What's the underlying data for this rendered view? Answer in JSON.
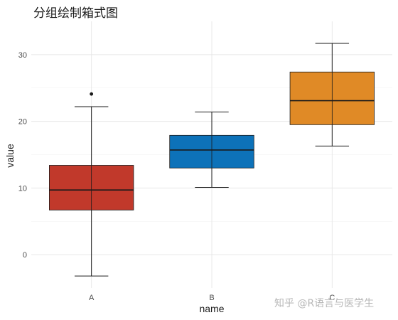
{
  "chart_data": {
    "type": "boxplot",
    "title": "分组绘制箱式图",
    "xlabel": "name",
    "ylabel": "value",
    "categories": [
      "A",
      "B",
      "C"
    ],
    "ylim": [
      -5,
      35
    ],
    "yticks": [
      0,
      10,
      20,
      30
    ],
    "grid": true,
    "boxes": [
      {
        "name": "A",
        "whisker_low": -3.2,
        "q1": 6.7,
        "median": 9.7,
        "q3": 13.4,
        "whisker_high": 22.2,
        "outliers": [
          24.1
        ],
        "color": "#c1392b"
      },
      {
        "name": "B",
        "whisker_low": 10.1,
        "q1": 13.0,
        "median": 15.7,
        "q3": 17.9,
        "whisker_high": 21.4,
        "outliers": [],
        "color": "#0d72b9"
      },
      {
        "name": "C",
        "whisker_low": 16.3,
        "q1": 19.5,
        "median": 23.1,
        "q3": 27.4,
        "whisker_high": 31.7,
        "outliers": [],
        "color": "#e08a26"
      }
    ]
  },
  "watermark": "知乎 @R语言与医学生"
}
